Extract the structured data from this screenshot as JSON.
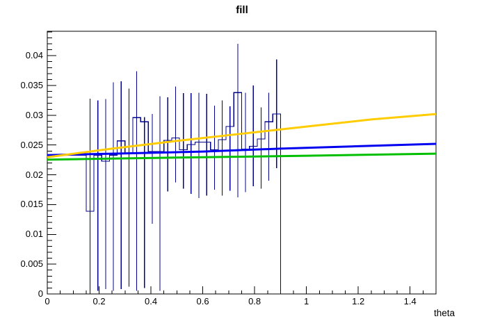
{
  "window": {
    "background": "#ffffff"
  },
  "chart_data": {
    "type": "bar",
    "subtype": "histogram-steps-with-error-bars-and-fit-lines",
    "title": "fill",
    "xlabel": "theta",
    "ylabel": "",
    "xlim": [
      0,
      1.5
    ],
    "ylim": [
      0,
      0.0441
    ],
    "grid": false,
    "legend": "none",
    "frame_color": "#000000",
    "x_major_ticks": [
      {
        "v": 0,
        "label": "0"
      },
      {
        "v": 0.2,
        "label": "0.2"
      },
      {
        "v": 0.4,
        "label": "0.4"
      },
      {
        "v": 0.6,
        "label": "0.6"
      },
      {
        "v": 0.8,
        "label": "0.8"
      },
      {
        "v": 1,
        "label": "1"
      },
      {
        "v": 1.2,
        "label": "1.2"
      },
      {
        "v": 1.4,
        "label": "1.4"
      }
    ],
    "x_minor_step": 0.05,
    "y_major_ticks": [
      {
        "v": 0,
        "label": "0"
      },
      {
        "v": 0.005,
        "label": "0.005"
      },
      {
        "v": 0.01,
        "label": "0.01"
      },
      {
        "v": 0.015,
        "label": "0.015"
      },
      {
        "v": 0.02,
        "label": "0.02"
      },
      {
        "v": 0.025,
        "label": "0.025"
      },
      {
        "v": 0.03,
        "label": "0.03"
      },
      {
        "v": 0.035,
        "label": "0.035"
      },
      {
        "v": 0.04,
        "label": "0.04"
      }
    ],
    "y_minor_step": 0.001,
    "histogram": {
      "name": "fill-histogram",
      "color": "#00008b",
      "line_width": 1.2,
      "bin_start": 0,
      "bin_width": 0.03,
      "values": [
        0.0233,
        0.0233,
        0.0233,
        0.0233,
        0.0233,
        0.0139,
        0.0233,
        0.0223,
        0.0233,
        0.0257,
        0.0236,
        0.0296,
        0.0289,
        0.0239,
        0.0239,
        0.0258,
        0.0262,
        0.0242,
        0.0251,
        0.0255,
        0.0255,
        0.0242,
        0.0259,
        0.0281,
        0.0338,
        0.0243,
        0.0248,
        0.026,
        0.0289,
        0.0302
      ],
      "drops_to_zero_at": 0.9
    },
    "error_bars": [
      [
        0.165,
        0.0,
        0.0328
      ],
      [
        0.195,
        0.0005,
        0.0325
      ],
      [
        0.225,
        0.0008,
        0.0327
      ],
      [
        0.255,
        0.0005,
        0.0355
      ],
      [
        0.285,
        0.0008,
        0.0357
      ],
      [
        0.315,
        0.0012,
        0.0345
      ],
      [
        0.345,
        0.0005,
        0.0374
      ],
      [
        0.375,
        0.001,
        0.0297
      ],
      [
        0.405,
        0.0118,
        0.0302
      ],
      [
        0.435,
        0.0005,
        0.0332
      ],
      [
        0.465,
        0.0172,
        0.033
      ],
      [
        0.495,
        0.0187,
        0.0348
      ],
      [
        0.525,
        0.0177,
        0.0337
      ],
      [
        0.555,
        0.0168,
        0.0337
      ],
      [
        0.585,
        0.0161,
        0.0338
      ],
      [
        0.615,
        0.0165,
        0.0336
      ],
      [
        0.645,
        0.0175,
        0.0316
      ],
      [
        0.675,
        0.0165,
        0.0325
      ],
      [
        0.705,
        0.0173,
        0.0315
      ],
      [
        0.735,
        0.0162,
        0.042
      ],
      [
        0.765,
        0.0171,
        0.0338
      ],
      [
        0.795,
        0.0181,
        0.035
      ],
      [
        0.825,
        0.0177,
        0.0313
      ],
      [
        0.855,
        0.019,
        0.0338
      ],
      [
        0.885,
        0.0211,
        0.0394
      ]
    ],
    "series": [
      {
        "name": "fit-green",
        "color": "#00bf00",
        "width": 3,
        "points": [
          [
            0,
            0.02255
          ],
          [
            0.5,
            0.0229
          ],
          [
            1.0,
            0.0232
          ],
          [
            1.5,
            0.02355
          ]
        ]
      },
      {
        "name": "fit-blue",
        "color": "#0000f0",
        "width": 3,
        "points": [
          [
            0,
            0.0233
          ],
          [
            0.3,
            0.0236
          ],
          [
            0.6,
            0.0239
          ],
          [
            0.9,
            0.0244
          ],
          [
            1.2,
            0.0248
          ],
          [
            1.5,
            0.0252
          ]
        ]
      },
      {
        "name": "fit-yellow",
        "color": "#ffcc00",
        "width": 3,
        "points": [
          [
            0,
            0.02295
          ],
          [
            0.25,
            0.0244
          ],
          [
            0.5,
            0.0257
          ],
          [
            0.75,
            0.0269
          ],
          [
            1.0,
            0.0281
          ],
          [
            1.25,
            0.0293
          ],
          [
            1.5,
            0.0302
          ]
        ]
      }
    ]
  }
}
